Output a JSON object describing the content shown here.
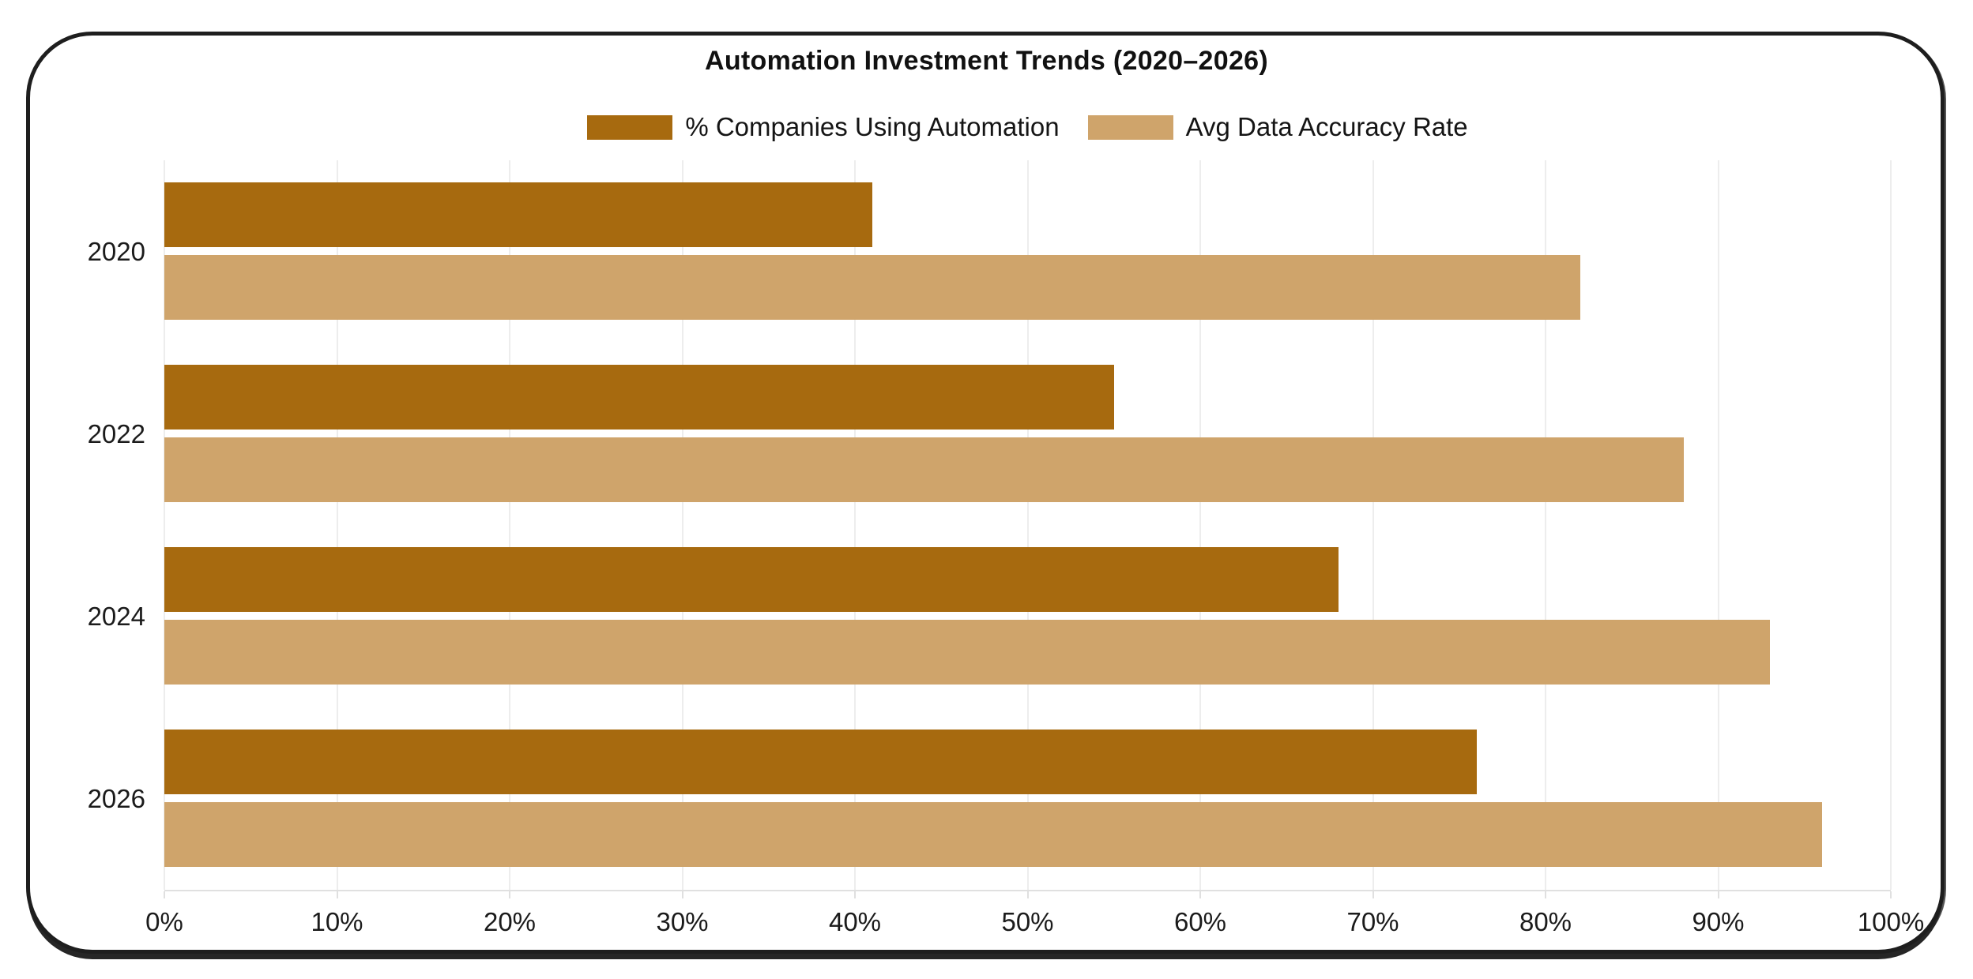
{
  "window": {
    "background": "#ffffff",
    "frame_border_color": "#1e1e1e"
  },
  "chart_data": {
    "type": "bar",
    "orientation": "horizontal",
    "title": "Automation Investment Trends (2020–2026)",
    "categories": [
      "2020",
      "2022",
      "2024",
      "2026"
    ],
    "series": [
      {
        "name": "% Companies Using Automation",
        "color": "#a76a0f",
        "values": [
          41,
          55,
          68,
          76
        ]
      },
      {
        "name": "Avg Data Accuracy Rate",
        "color": "#cfa46b",
        "values": [
          82,
          88,
          93,
          96
        ]
      }
    ],
    "x_axis": {
      "min": 0,
      "max": 100,
      "tick_step": 10,
      "tick_labels": [
        "0%",
        "10%",
        "20%",
        "30%",
        "40%",
        "50%",
        "60%",
        "70%",
        "80%",
        "90%",
        "100%"
      ]
    },
    "legend_position": "top",
    "grid": true,
    "grid_color": "#ededed",
    "text_color": "#1b1b1b"
  }
}
